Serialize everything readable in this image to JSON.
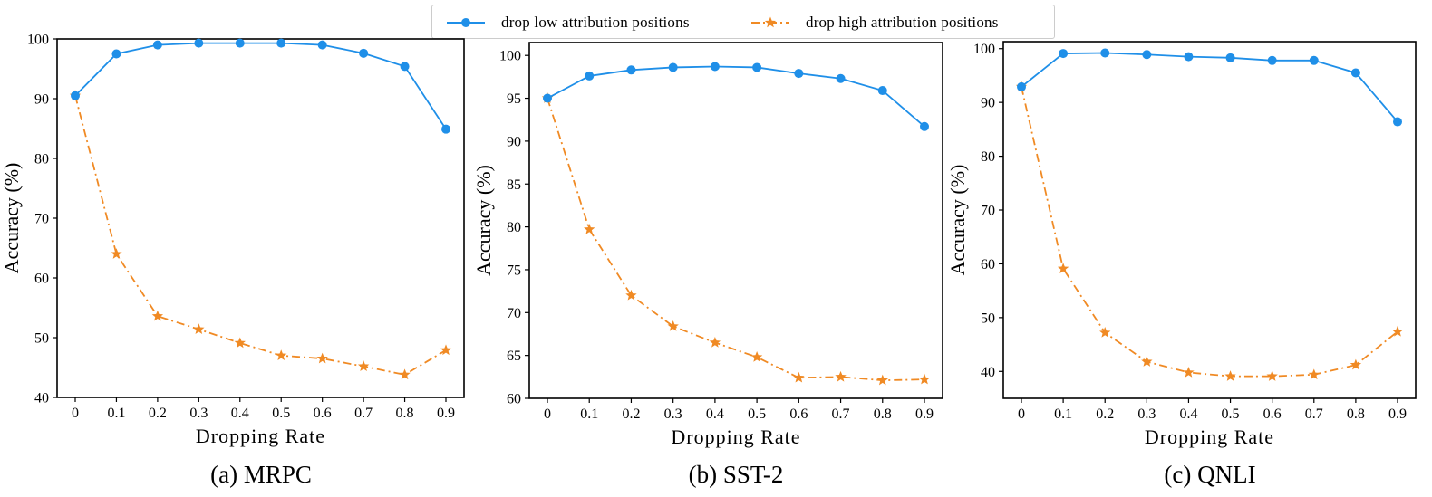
{
  "legend": {
    "items": [
      {
        "label": "drop low attribution positions",
        "color": "#1f8fe8",
        "marker": "circle",
        "line": "solid"
      },
      {
        "label": "drop high attribution positions",
        "color": "#f08a24",
        "marker": "star",
        "line": "dashdot"
      }
    ]
  },
  "chart_data": [
    {
      "type": "line",
      "caption": "(a) MRPC",
      "xlabel": "Dropping Rate",
      "ylabel": "Accuracy (%)",
      "x": [
        0,
        0.1,
        0.2,
        0.3,
        0.4,
        0.5,
        0.6,
        0.7,
        0.8,
        0.9
      ],
      "x_ticks": [
        "0",
        "0.1",
        "0.2",
        "0.3",
        "0.4",
        "0.5",
        "0.6",
        "0.7",
        "0.8",
        "0.9"
      ],
      "ylim": [
        40,
        100
      ],
      "y_ticks": [
        40,
        50,
        60,
        70,
        80,
        90,
        100
      ],
      "series": [
        {
          "name": "drop low attribution positions",
          "values": [
            90.5,
            97.5,
            99.0,
            99.3,
            99.3,
            99.3,
            99.0,
            97.6,
            95.4,
            84.9
          ]
        },
        {
          "name": "drop high attribution positions",
          "values": [
            90.5,
            64.0,
            53.6,
            51.4,
            49.1,
            47.0,
            46.5,
            45.2,
            43.8,
            47.9
          ]
        }
      ]
    },
    {
      "type": "line",
      "caption": "(b) SST-2",
      "xlabel": "Dropping Rate",
      "ylabel": "Accuracy (%)",
      "x": [
        0,
        0.1,
        0.2,
        0.3,
        0.4,
        0.5,
        0.6,
        0.7,
        0.8,
        0.9
      ],
      "x_ticks": [
        "0",
        "0.1",
        "0.2",
        "0.3",
        "0.4",
        "0.5",
        "0.6",
        "0.7",
        "0.8",
        "0.9"
      ],
      "ylim": [
        60,
        101.5
      ],
      "y_ticks": [
        60,
        65,
        70,
        75,
        80,
        85,
        90,
        95,
        100
      ],
      "series": [
        {
          "name": "drop low attribution positions",
          "values": [
            95.0,
            97.6,
            98.3,
            98.6,
            98.7,
            98.6,
            97.9,
            97.3,
            95.9,
            91.7
          ]
        },
        {
          "name": "drop high attribution positions",
          "values": [
            95.0,
            79.7,
            72.0,
            68.4,
            66.5,
            64.8,
            62.4,
            62.5,
            62.1,
            62.2
          ]
        }
      ]
    },
    {
      "type": "line",
      "caption": "(c) QNLI",
      "xlabel": "Dropping Rate",
      "ylabel": "Accuracy (%)",
      "x": [
        0,
        0.1,
        0.2,
        0.3,
        0.4,
        0.5,
        0.6,
        0.7,
        0.8,
        0.9
      ],
      "x_ticks": [
        "0",
        "0.1",
        "0.2",
        "0.3",
        "0.4",
        "0.5",
        "0.6",
        "0.7",
        "0.8",
        "0.9"
      ],
      "ylim": [
        35,
        101.3
      ],
      "y_ticks": [
        40,
        50,
        60,
        70,
        80,
        90,
        100
      ],
      "series": [
        {
          "name": "drop low attribution positions",
          "values": [
            92.9,
            99.1,
            99.2,
            98.9,
            98.5,
            98.3,
            97.8,
            97.8,
            95.5,
            86.4
          ]
        },
        {
          "name": "drop high attribution positions",
          "values": [
            92.9,
            59.1,
            47.2,
            41.8,
            39.8,
            39.1,
            39.1,
            39.4,
            41.2,
            47.4
          ]
        }
      ]
    }
  ]
}
